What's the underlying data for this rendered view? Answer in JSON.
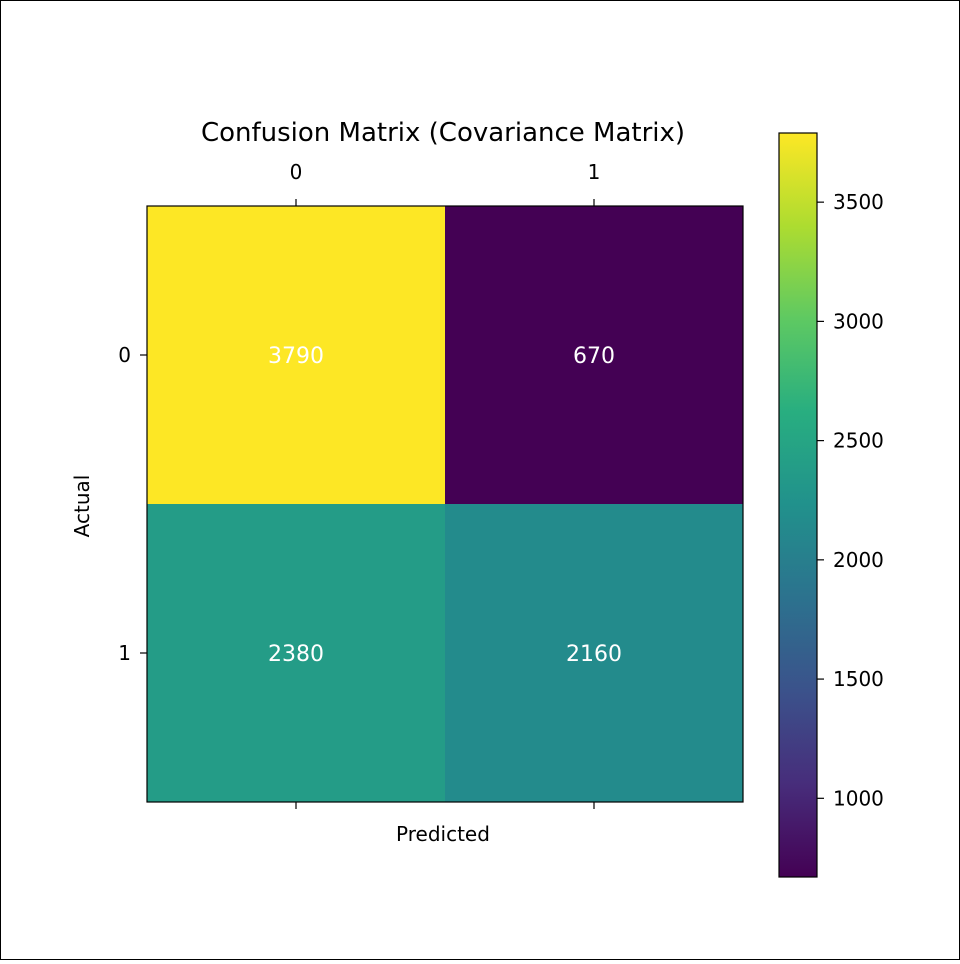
{
  "chart_data": {
    "type": "heatmap",
    "title": "Confusion Matrix (Covariance Matrix)",
    "xlabel": "Predicted",
    "ylabel": "Actual",
    "x_categories": [
      "0",
      "1"
    ],
    "y_categories": [
      "0",
      "1"
    ],
    "values": [
      [
        3790,
        670
      ],
      [
        2380,
        2160
      ]
    ],
    "colormap": "viridis",
    "colorbar": {
      "range": [
        670,
        3790
      ],
      "ticks": [
        "1000",
        "1500",
        "2000",
        "2500",
        "3000",
        "3500"
      ],
      "tick_values": [
        1000,
        1500,
        2000,
        2500,
        3000,
        3500
      ]
    },
    "x_ticks_position": "top",
    "cell_label_color": "#ffffff",
    "grid": false
  }
}
